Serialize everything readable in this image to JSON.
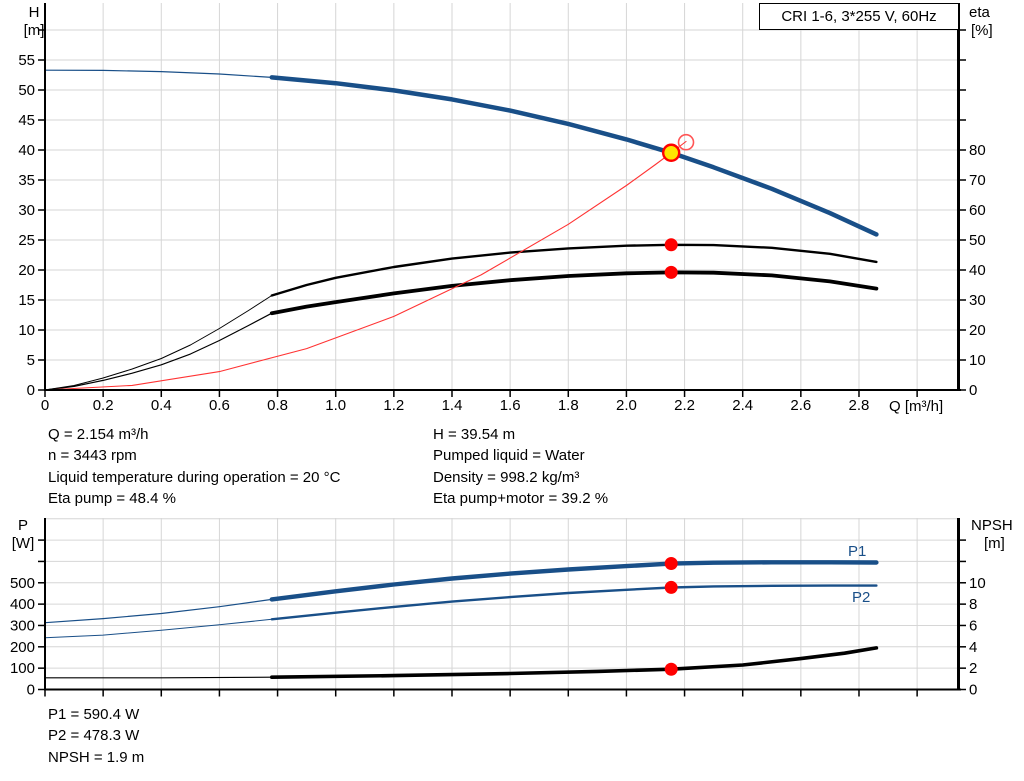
{
  "title_box": "CRI 1-6, 3*255 V, 60Hz",
  "colors": {
    "curve_blue": "#194f88",
    "curve_black": "#000000",
    "system_red": "#ff3333",
    "dot_red": "#ff0000",
    "duty_yellow": "#ffe400",
    "grid": "#d6d6d6",
    "axis": "#000000"
  },
  "annotations": {
    "block1_left": [
      "Q = 2.154 m³/h",
      "n = 3443 rpm",
      "Liquid temperature during operation = 20 °C",
      "Eta pump = 48.4 %"
    ],
    "block1_right": [
      "H = 39.54 m",
      "Pumped liquid = Water",
      "Density = 998.2 kg/m³",
      "Eta pump+motor = 39.2 %"
    ],
    "block2": [
      "P1 = 590.4 W",
      "P2 = 478.3 W",
      "NPSH = 1.9 m"
    ]
  },
  "chart_data": [
    {
      "name": "QH-and-efficiency-curves",
      "type": "line",
      "x_axis": {
        "label": "Q [m³/h]",
        "ticks": [
          0,
          0.2,
          0.4,
          0.6,
          0.8,
          1.0,
          1.2,
          1.4,
          1.6,
          1.8,
          2.0,
          2.2,
          2.4,
          2.6,
          2.8
        ],
        "max": 3.15,
        "labels_visible": true
      },
      "y_left": {
        "label_lines": [
          "H",
          "[m]"
        ],
        "ticks": [
          0,
          5,
          10,
          15,
          20,
          25,
          30,
          35,
          40,
          45,
          50,
          55
        ],
        "max": 64
      },
      "y_right": {
        "label_lines": [
          "eta",
          "[%]"
        ],
        "ticks": [
          0,
          10,
          20,
          30,
          40,
          50,
          60,
          70,
          80
        ],
        "max": 128
      },
      "grid": true,
      "series": [
        {
          "label": "H curve",
          "axis": "left",
          "color": "#194f88",
          "thin_until": 0.78,
          "points": [
            [
              0,
              53.3
            ],
            [
              0.2,
              53.26
            ],
            [
              0.4,
              53.06
            ],
            [
              0.6,
              52.67
            ],
            [
              0.78,
              52.1
            ],
            [
              1.0,
              51.14
            ],
            [
              1.2,
              49.94
            ],
            [
              1.4,
              48.43
            ],
            [
              1.6,
              46.57
            ],
            [
              1.8,
              44.35
            ],
            [
              2.0,
              41.77
            ],
            [
              2.154,
              39.54
            ],
            [
              2.3,
              37.12
            ],
            [
              2.5,
              33.53
            ],
            [
              2.7,
              29.49
            ],
            [
              2.86,
              25.93
            ]
          ]
        },
        {
          "label": "Eta pump",
          "axis": "right",
          "color": "#000000",
          "thin_until": 0.78,
          "points": [
            [
              0,
              0
            ],
            [
              0.1,
              1.5
            ],
            [
              0.2,
              4
            ],
            [
              0.3,
              7
            ],
            [
              0.4,
              10.5
            ],
            [
              0.5,
              15
            ],
            [
              0.6,
              20.5
            ],
            [
              0.7,
              26.5
            ],
            [
              0.78,
              31.5
            ],
            [
              0.9,
              35
            ],
            [
              1.0,
              37.4
            ],
            [
              1.2,
              41
            ],
            [
              1.4,
              43.8
            ],
            [
              1.6,
              45.8
            ],
            [
              1.8,
              47.2
            ],
            [
              2.0,
              48.1
            ],
            [
              2.154,
              48.4
            ],
            [
              2.3,
              48.3
            ],
            [
              2.5,
              47.4
            ],
            [
              2.7,
              45.4
            ],
            [
              2.86,
              42.7
            ]
          ]
        },
        {
          "label": "Eta pump+motor",
          "axis": "right",
          "color": "#000000",
          "thin_until": 0.78,
          "points": [
            [
              0,
              0
            ],
            [
              0.1,
              1.2
            ],
            [
              0.2,
              3.2
            ],
            [
              0.3,
              5.6
            ],
            [
              0.4,
              8.4
            ],
            [
              0.5,
              12
            ],
            [
              0.6,
              16.5
            ],
            [
              0.7,
              21.5
            ],
            [
              0.78,
              25.6
            ],
            [
              0.9,
              27.8
            ],
            [
              1.0,
              29.3
            ],
            [
              1.2,
              32.2
            ],
            [
              1.4,
              34.7
            ],
            [
              1.6,
              36.6
            ],
            [
              1.8,
              38
            ],
            [
              2.0,
              38.9
            ],
            [
              2.154,
              39.2
            ],
            [
              2.3,
              39.1
            ],
            [
              2.5,
              38.2
            ],
            [
              2.7,
              36.2
            ],
            [
              2.86,
              33.8
            ]
          ]
        },
        {
          "label": "System curve",
          "axis": "left",
          "color": "#ff3333",
          "points": [
            [
              0,
              0
            ],
            [
              0.3,
              0.77
            ],
            [
              0.6,
              3.07
            ],
            [
              0.9,
              6.9
            ],
            [
              1.2,
              12.27
            ],
            [
              1.5,
              19.18
            ],
            [
              1.8,
              27.61
            ],
            [
              2.0,
              34.09
            ],
            [
              2.1,
              37.59
            ],
            [
              2.154,
              39.54
            ],
            [
              2.205,
              41.42
            ]
          ]
        }
      ],
      "markers": [
        {
          "kind": "duty-point",
          "axis": "left",
          "q": 2.154,
          "value": 39.54
        },
        {
          "kind": "requested-point",
          "axis": "left",
          "q": 2.205,
          "value": 41.3
        },
        {
          "kind": "dot",
          "axis": "right",
          "q": 2.154,
          "value": 48.4
        },
        {
          "kind": "dot",
          "axis": "right",
          "q": 2.154,
          "value": 39.2
        }
      ]
    },
    {
      "name": "power-and-NPSH-curves",
      "type": "line",
      "x_axis": {
        "label": "",
        "ticks": [
          0,
          0.2,
          0.4,
          0.6,
          0.8,
          1.0,
          1.2,
          1.4,
          1.6,
          1.8,
          2.0,
          2.2,
          2.4,
          2.6,
          2.8
        ],
        "max": 3.15,
        "labels_visible": false
      },
      "y_left": {
        "label_lines": [
          "P",
          "[W]"
        ],
        "ticks": [
          0,
          100,
          200,
          300,
          400,
          500
        ],
        "max": 800
      },
      "y_right": {
        "label_lines": [
          "NPSH",
          "[m]"
        ],
        "ticks": [
          0,
          2,
          4,
          6,
          8,
          10
        ],
        "max": 16
      },
      "grid": true,
      "series": [
        {
          "label": "P1",
          "axis": "left",
          "color": "#194f88",
          "thin_until": 0.78,
          "points": [
            [
              0,
              313
            ],
            [
              0.2,
              332
            ],
            [
              0.4,
              356
            ],
            [
              0.6,
              388
            ],
            [
              0.78,
              422
            ],
            [
              1.0,
              460
            ],
            [
              1.2,
              492
            ],
            [
              1.4,
              520
            ],
            [
              1.6,
              543
            ],
            [
              1.8,
              562
            ],
            [
              2.0,
              578
            ],
            [
              2.154,
              590
            ],
            [
              2.3,
              594
            ],
            [
              2.5,
              596
            ],
            [
              2.7,
              596
            ],
            [
              2.86,
              595
            ]
          ]
        },
        {
          "label": "P2",
          "axis": "left",
          "color": "#194f88",
          "thin_until": 0.78,
          "points": [
            [
              0,
              242
            ],
            [
              0.2,
              255
            ],
            [
              0.4,
              278
            ],
            [
              0.6,
              303
            ],
            [
              0.78,
              329
            ],
            [
              1.0,
              360
            ],
            [
              1.2,
              387
            ],
            [
              1.4,
              412
            ],
            [
              1.6,
              433
            ],
            [
              1.8,
              452
            ],
            [
              2.0,
              467
            ],
            [
              2.154,
              478
            ],
            [
              2.3,
              483
            ],
            [
              2.5,
              486
            ],
            [
              2.7,
              487
            ],
            [
              2.86,
              487
            ]
          ]
        },
        {
          "label": "NPSH",
          "axis": "right",
          "color": "#000000",
          "thin_until": 0.78,
          "points": [
            [
              0,
              1.1
            ],
            [
              0.4,
              1.1
            ],
            [
              0.78,
              1.15
            ],
            [
              1.2,
              1.3
            ],
            [
              1.6,
              1.5
            ],
            [
              1.9,
              1.7
            ],
            [
              2.154,
              1.9
            ],
            [
              2.4,
              2.3
            ],
            [
              2.6,
              2.9
            ],
            [
              2.75,
              3.4
            ],
            [
              2.86,
              3.9
            ]
          ]
        }
      ],
      "markers": [
        {
          "kind": "dot",
          "axis": "left",
          "q": 2.154,
          "value": 590.4
        },
        {
          "kind": "dot",
          "axis": "left",
          "q": 2.154,
          "value": 478.3
        },
        {
          "kind": "dot",
          "axis": "right",
          "q": 2.154,
          "value": 1.9
        }
      ]
    }
  ]
}
